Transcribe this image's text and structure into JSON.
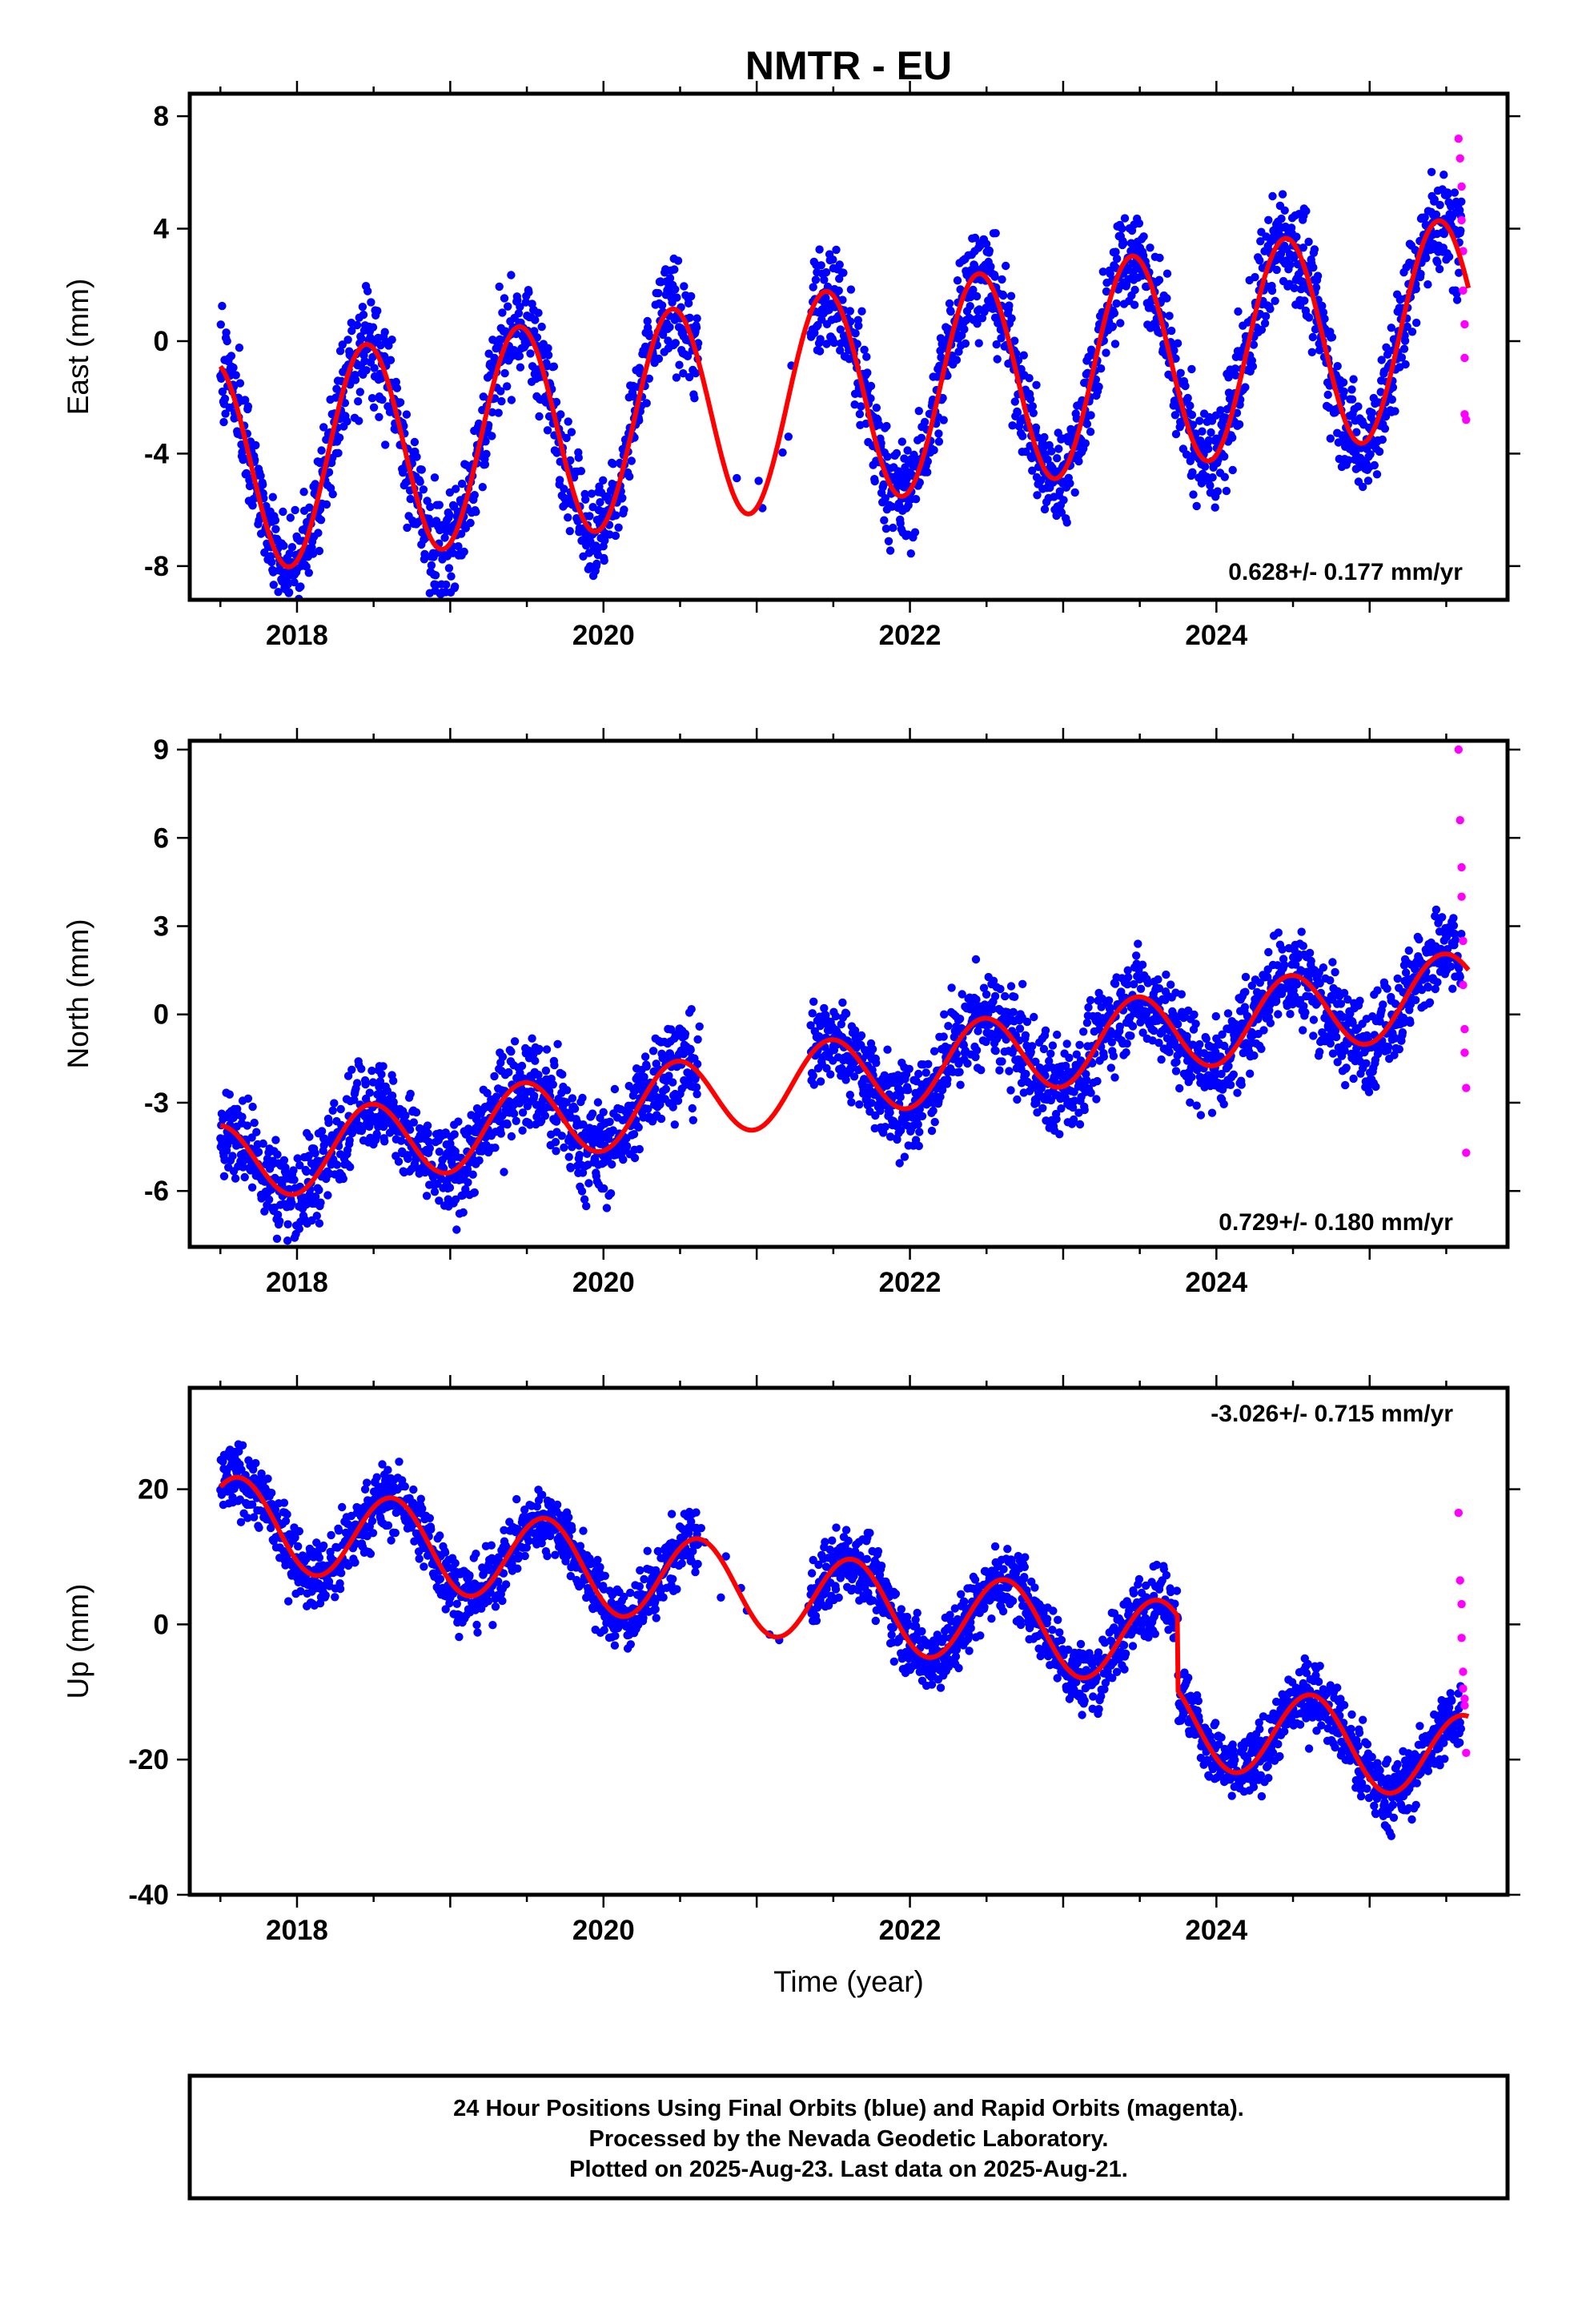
{
  "title": "NMTR - EU",
  "colors": {
    "final": "#0000ff",
    "rapid": "#ff00ff",
    "model": "#ff0000"
  },
  "xlabel": "Time (year)",
  "footer": {
    "line1": "24 Hour Positions Using Final Orbits (blue) and Rapid Orbits (magenta).",
    "line2": "Processed by the Nevada Geodetic Laboratory.",
    "line3": "Plotted on 2025-Aug-23. Last data on 2025-Aug-21."
  },
  "chart_data": [
    {
      "type": "scatter",
      "title": "NMTR - EU",
      "ylabel": "East (mm)",
      "xlabel": "",
      "xlim": [
        2017.3,
        2025.9
      ],
      "xticks": [
        2018,
        2020,
        2022,
        2024
      ],
      "xtick_labels": [
        "2018",
        "2020",
        "2022",
        "2024"
      ],
      "ylim": [
        -9.2,
        8.8
      ],
      "yticks": [
        8,
        4,
        0,
        -4,
        -8
      ],
      "ytick_labels": [
        "8",
        "4",
        "0",
        "-4",
        "-8"
      ],
      "rate_label": "0.628+/- 0.177 mm/yr",
      "model": {
        "offset": -2.0,
        "rate": 0.628,
        "annual_amp": 3.8,
        "annual_peak": 0.45,
        "noise": 1.1
      },
      "gaps": [
        [
          2020.62,
          2021.35
        ]
      ],
      "series": [
        {
          "name": "Final Orbits",
          "color": "#0000ff",
          "x_range": [
            2017.5,
            2025.6
          ]
        },
        {
          "name": "Rapid Orbits",
          "color": "#ff00ff",
          "x": [
            2025.58,
            2025.59,
            2025.6,
            2025.6,
            2025.61,
            2025.61,
            2025.62,
            2025.62,
            2025.62,
            2025.63
          ],
          "y": [
            7.2,
            6.5,
            5.5,
            4.3,
            3.2,
            1.8,
            0.6,
            -0.6,
            -2.6,
            -2.8
          ]
        },
        {
          "name": "Model",
          "color": "#ff0000",
          "x_range": [
            2017.5,
            2025.65
          ]
        }
      ]
    },
    {
      "type": "scatter",
      "ylabel": "North (mm)",
      "xlabel": "",
      "xlim": [
        2017.3,
        2025.9
      ],
      "xticks": [
        2018,
        2020,
        2022,
        2024
      ],
      "xtick_labels": [
        "2018",
        "2020",
        "2022",
        "2024"
      ],
      "ylim": [
        -7.9,
        9.3
      ],
      "yticks": [
        9,
        6,
        3,
        0,
        -3,
        -6
      ],
      "ytick_labels": [
        "9",
        "6",
        "3",
        "0",
        "-3",
        "-6"
      ],
      "rate_label": "0.729+/- 0.180 mm/yr",
      "model": {
        "offset": -2.2,
        "rate": 0.729,
        "annual_amp": 1.35,
        "annual_peak": 0.48,
        "noise": 0.95
      },
      "gaps": [
        [
          2020.62,
          2021.35
        ]
      ],
      "series": [
        {
          "name": "Final Orbits",
          "color": "#0000ff",
          "x_range": [
            2017.5,
            2025.6
          ]
        },
        {
          "name": "Rapid Orbits",
          "color": "#ff00ff",
          "x": [
            2025.58,
            2025.59,
            2025.6,
            2025.6,
            2025.61,
            2025.61,
            2025.62,
            2025.62,
            2025.63,
            2025.63
          ],
          "y": [
            9.0,
            6.6,
            5.0,
            4.0,
            2.5,
            1.0,
            -0.5,
            -1.3,
            -2.5,
            -4.7
          ]
        },
        {
          "name": "Model",
          "color": "#ff0000",
          "x_range": [
            2017.5,
            2025.65
          ]
        }
      ]
    },
    {
      "type": "scatter",
      "ylabel": "Up (mm)",
      "xlabel": "Time (year)",
      "xlim": [
        2017.3,
        2025.9
      ],
      "xticks": [
        2018,
        2020,
        2022,
        2024
      ],
      "xtick_labels": [
        "2018",
        "2020",
        "2022",
        "2024"
      ],
      "ylim": [
        -40,
        35
      ],
      "yticks": [
        20,
        0,
        -20,
        -40
      ],
      "ytick_labels": [
        "20",
        "0",
        "-20",
        "-40"
      ],
      "rate_label": "-3.026+/- 0.715 mm/yr",
      "model": {
        "offset": 3.5,
        "rate": -3.026,
        "annual_amp": 6.5,
        "annual_peak": 0.62,
        "noise": 3.0,
        "step": {
          "at": 2023.75,
          "size": -11.0
        }
      },
      "gaps": [
        [
          2020.62,
          2021.35
        ]
      ],
      "series": [
        {
          "name": "Final Orbits",
          "color": "#0000ff",
          "x_range": [
            2017.5,
            2025.6
          ]
        },
        {
          "name": "Rapid Orbits",
          "color": "#ff00ff",
          "x": [
            2025.58,
            2025.59,
            2025.6,
            2025.6,
            2025.61,
            2025.61,
            2025.62,
            2025.62,
            2025.63
          ],
          "y": [
            16.5,
            6.5,
            3.0,
            -2.0,
            -7.0,
            -9.5,
            -11.0,
            -12.0,
            -19.0
          ]
        },
        {
          "name": "Model",
          "color": "#ff0000",
          "x_range": [
            2017.5,
            2025.65
          ]
        }
      ]
    }
  ]
}
